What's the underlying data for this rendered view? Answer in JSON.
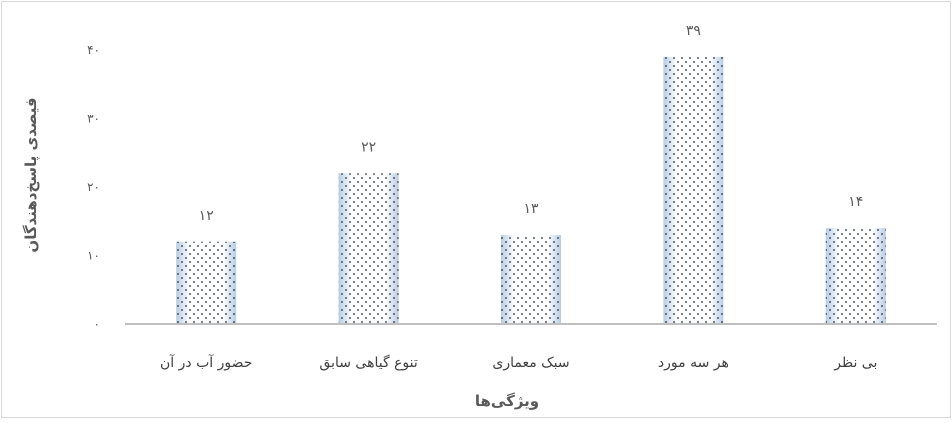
{
  "chart_data": {
    "type": "bar",
    "xlabel": "ویژگی‌ها",
    "ylabel": "فیصدی پاسخ‌دهندگان",
    "ylim": [
      0,
      40
    ],
    "y_ticks": [
      "۰",
      "۱۰",
      "۲۰",
      "۳۰",
      "۴۰"
    ],
    "categories": [
      "حضور آب در آن",
      "تنوع گیاهی سابق",
      "سبک معماری",
      "هر سه مورد",
      "بی نظر"
    ],
    "values": [
      12,
      22,
      13,
      39,
      14
    ],
    "data_labels": [
      "۱۲",
      "۲۲",
      "۱۳",
      "۳۹",
      "۱۴"
    ],
    "grid": false,
    "legend": "none",
    "bar_fill": "#ffffff",
    "bar_gradient_edge": "#b8cce4",
    "dot_color": "#1f2d3d",
    "axis_color": "#bfbfbf",
    "border_color": "#d9d9d9"
  }
}
